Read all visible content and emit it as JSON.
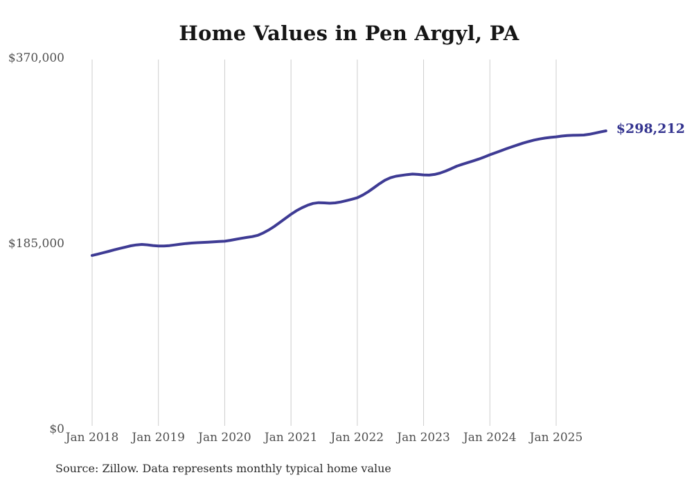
{
  "title": "Home Values in Pen Argyl, PA",
  "source_note": "Source: Zillow. Data represents monthly typical home value",
  "end_label": "$298,212",
  "colors": {
    "line": "#3e3b94",
    "grid": "#cccccc",
    "tick_text": "#4f4f4f",
    "title_text": "#161616",
    "end_label_text": "#33338f",
    "source_text": "#2b2b2b",
    "background": "#ffffff"
  },
  "chart_data": {
    "type": "line",
    "title": "Home Values in Pen Argyl, PA",
    "xlabel": "",
    "ylabel": "",
    "x_start": "2018-01",
    "x_step_months": 1,
    "x_tick_labels": [
      "Jan 2018",
      "Jan 2019",
      "Jan 2020",
      "Jan 2021",
      "Jan 2022",
      "Jan 2023",
      "Jan 2024",
      "Jan 2025"
    ],
    "x_tick_month_indices": [
      0,
      12,
      24,
      36,
      48,
      60,
      72,
      84
    ],
    "y_ticks": [
      {
        "label": "$0",
        "value": 0
      },
      {
        "label": "$185,000",
        "value": 185000
      },
      {
        "label": "$370,000",
        "value": 370000
      }
    ],
    "ylim": [
      0,
      370000
    ],
    "grid": "vertical-only",
    "legend": "none",
    "annotation_final_value": 298212,
    "series": [
      {
        "name": "Typical home value (monthly)",
        "values": [
          174000,
          175300,
          176700,
          178100,
          179600,
          181000,
          182300,
          183600,
          184500,
          185000,
          184600,
          183900,
          183500,
          183400,
          183800,
          184500,
          185300,
          185900,
          186400,
          186700,
          187000,
          187300,
          187600,
          187900,
          188200,
          189100,
          190100,
          191100,
          192000,
          192800,
          194100,
          196500,
          199500,
          203000,
          207000,
          211000,
          215000,
          218600,
          221600,
          224100,
          225900,
          226600,
          226400,
          226100,
          226400,
          227300,
          228600,
          230000,
          231500,
          234200,
          237600,
          241500,
          245500,
          249000,
          251500,
          253000,
          253800,
          254600,
          255100,
          254800,
          254300,
          254100,
          254800,
          256200,
          258200,
          260500,
          263000,
          264900,
          266600,
          268300,
          270100,
          272200,
          274400,
          276400,
          278400,
          280400,
          282300,
          284200,
          286000,
          287600,
          289000,
          290100,
          291000,
          291700,
          292300,
          293000,
          293500,
          293800,
          293900,
          294100,
          294800,
          295900,
          297100,
          298212
        ]
      }
    ]
  }
}
